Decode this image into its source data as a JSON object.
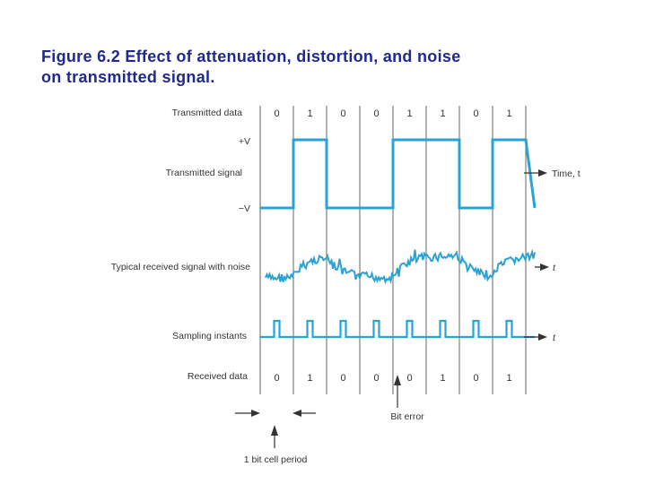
{
  "title": {
    "line1": "Figure 6.2 Effect of attenuation, distortion, and noise",
    "line2": "on transmitted signal."
  },
  "labels": {
    "transmitted_data": "Transmitted data",
    "plus_v": "+V",
    "transmitted_signal": "Transmitted signal",
    "minus_v": "−V",
    "time_t": "Time, t",
    "received_noise": "Typical received signal with noise",
    "t_received": "t",
    "sampling_instants": "Sampling instants",
    "t_sampling": "t",
    "received_data": "Received data",
    "bit_error": "Bit error",
    "bit_cell_period": "1 bit cell period"
  },
  "transmitted_bits": [
    "0",
    "1",
    "0",
    "0",
    "1",
    "1",
    "0",
    "1"
  ],
  "received_bits": [
    "0",
    "1",
    "0",
    "0",
    "0",
    "1",
    "0",
    "1"
  ],
  "colors": {
    "signal": "#29a3d6",
    "title": "#1f2a8f",
    "text": "#333333"
  }
}
